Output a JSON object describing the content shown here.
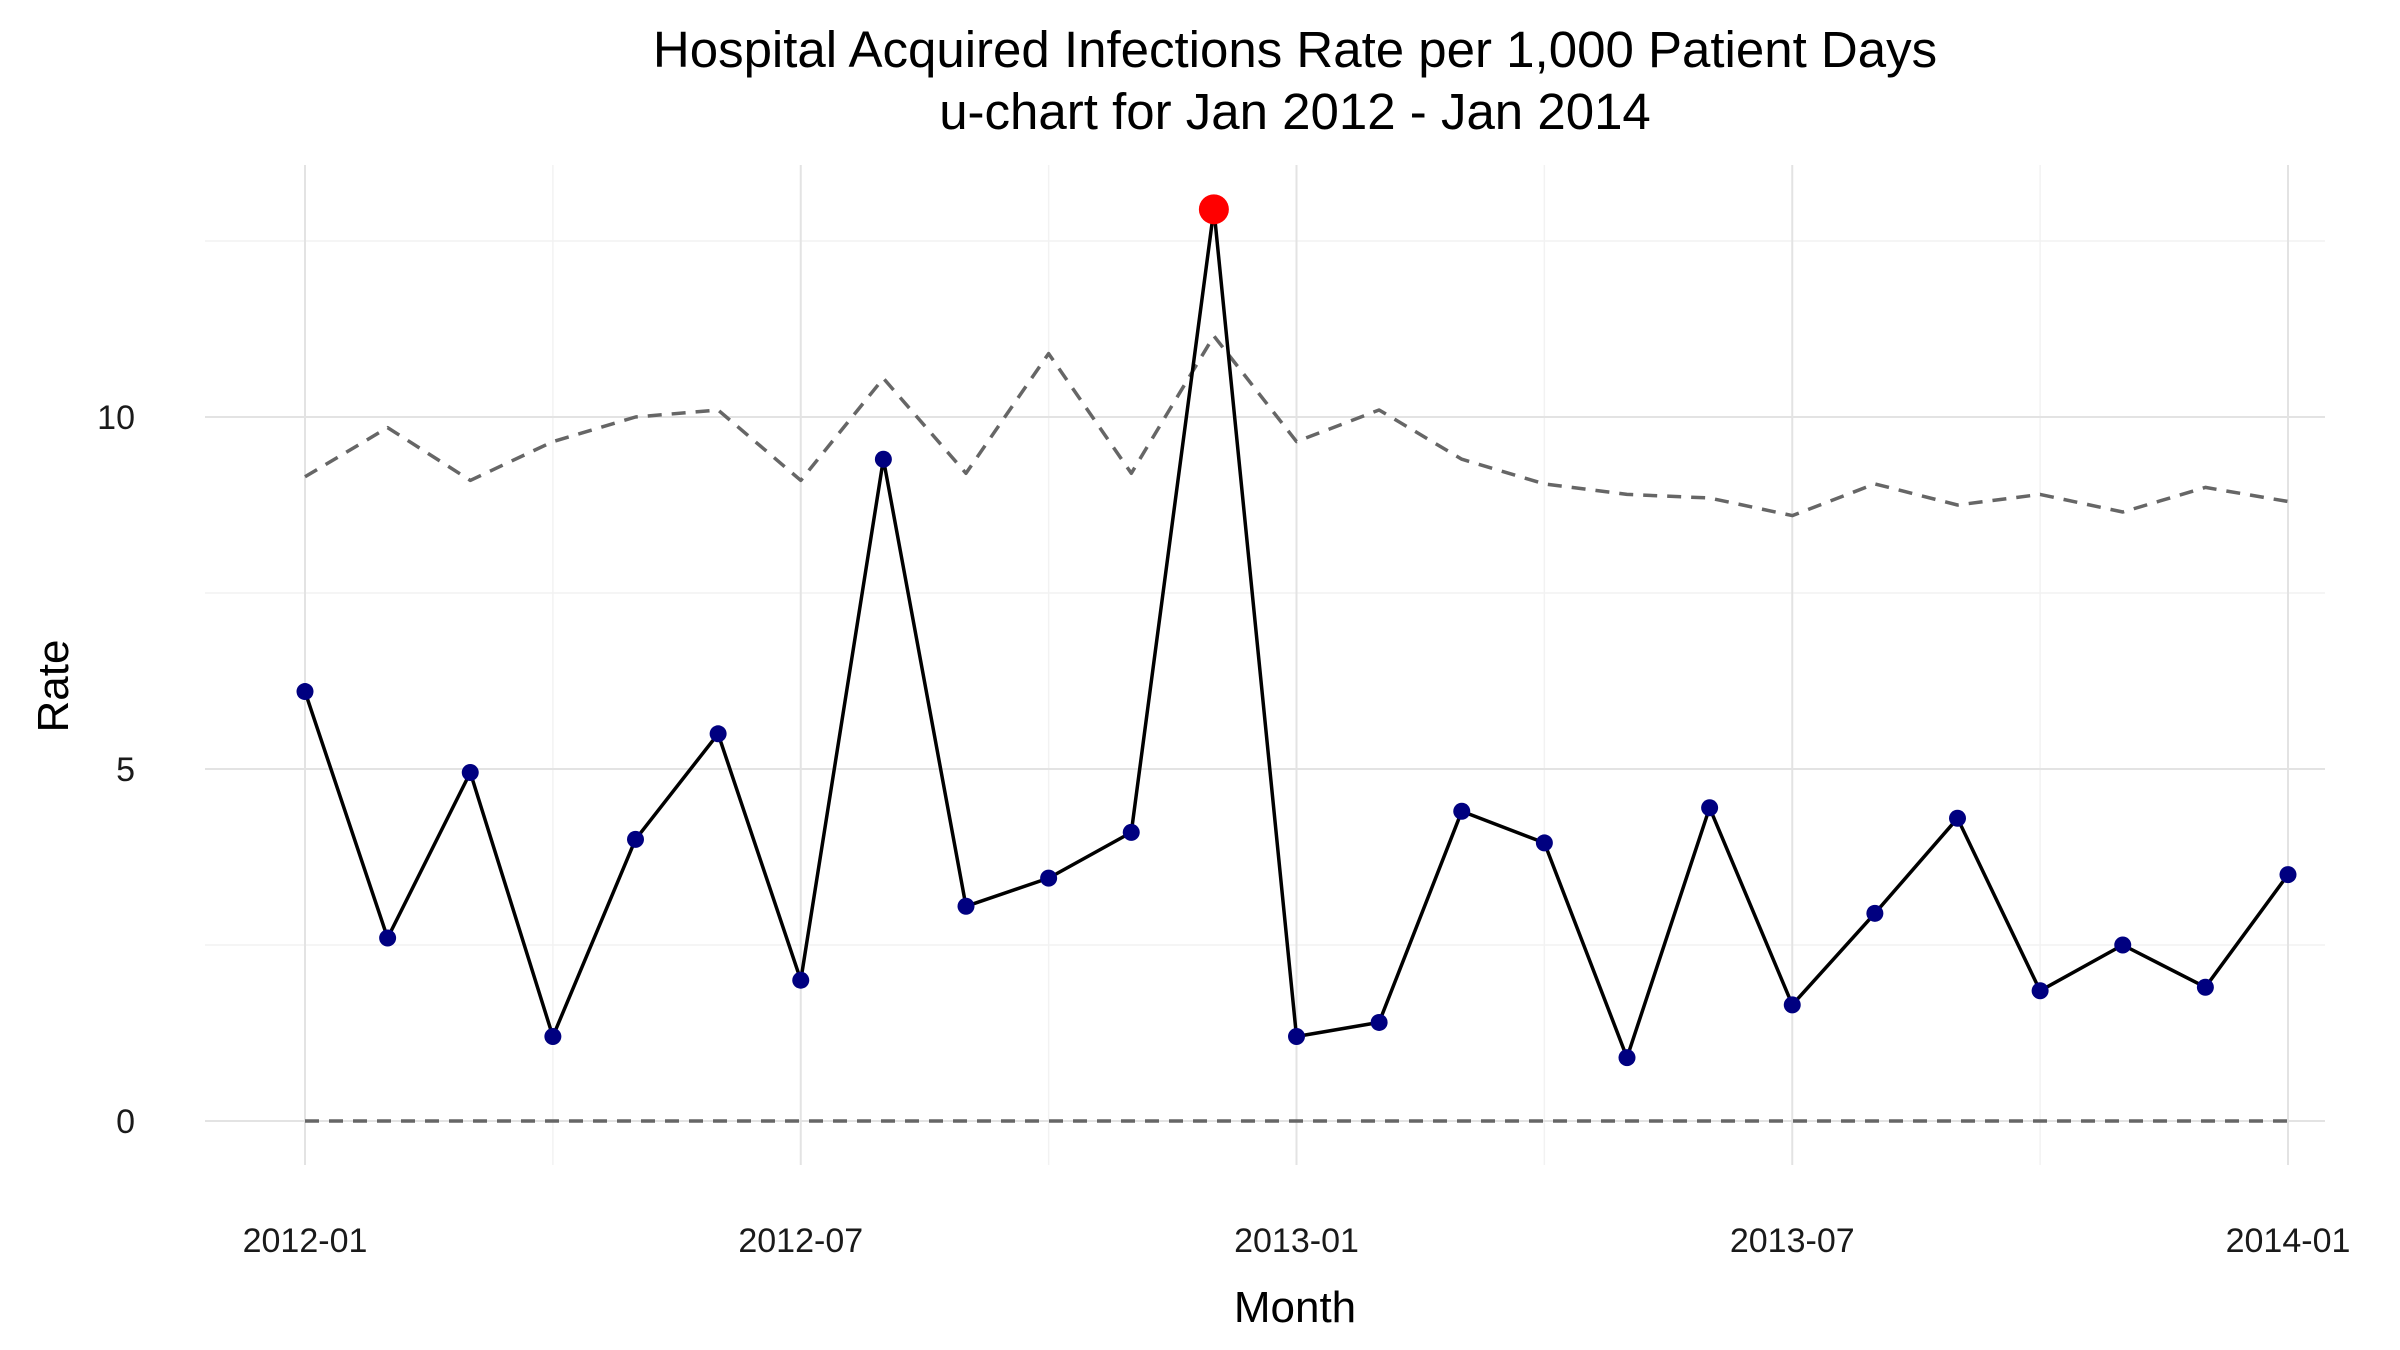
{
  "chart_data": {
    "type": "line",
    "title": "Hospital Acquired Infections Rate per 1,000 Patient Days",
    "subtitle": "u-chart for Jan 2012 - Jan 2014",
    "xlabel": "Month",
    "ylabel": "Rate",
    "x_ticks": [
      "2012-01",
      "2012-07",
      "2013-01",
      "2013-07",
      "2014-01"
    ],
    "y_ticks": [
      "0",
      "5",
      "10"
    ],
    "ylim": [
      -0.7,
      13.6
    ],
    "grid": true,
    "x": [
      "2012-01",
      "2012-02",
      "2012-03",
      "2012-04",
      "2012-05",
      "2012-06",
      "2012-07",
      "2012-08",
      "2012-09",
      "2012-10",
      "2012-11",
      "2012-12",
      "2013-01",
      "2013-02",
      "2013-03",
      "2013-04",
      "2013-05",
      "2013-06",
      "2013-07",
      "2013-08",
      "2013-09",
      "2013-10",
      "2013-11",
      "2013-12",
      "2014-01"
    ],
    "series": [
      {
        "role": "rate",
        "color": "#000000",
        "point_color": "#000080",
        "values": [
          6.1,
          2.6,
          4.95,
          1.2,
          4.0,
          5.5,
          2.0,
          9.4,
          3.05,
          3.45,
          4.1,
          12.95,
          1.2,
          1.4,
          4.4,
          3.95,
          0.9,
          4.45,
          1.65,
          2.95,
          4.3,
          1.85,
          2.5,
          1.9,
          3.5
        ]
      },
      {
        "role": "upper-control-limit",
        "color": "#666666",
        "dashed": true,
        "values": [
          9.15,
          9.85,
          9.1,
          9.65,
          10.0,
          10.1,
          9.1,
          10.55,
          9.2,
          10.9,
          9.2,
          11.15,
          9.65,
          10.1,
          9.4,
          9.05,
          8.9,
          8.85,
          8.6,
          9.05,
          8.75,
          8.9,
          8.65,
          9.0,
          8.8
        ]
      },
      {
        "role": "lower-control-limit",
        "color": "#666666",
        "dashed": true,
        "values": [
          0,
          0,
          0,
          0,
          0,
          0,
          0,
          0,
          0,
          0,
          0,
          0,
          0,
          0,
          0,
          0,
          0,
          0,
          0,
          0,
          0,
          0,
          0,
          0,
          0
        ]
      }
    ],
    "highlight": {
      "x": "2012-12",
      "value": 12.95,
      "color": "#ff0000"
    }
  }
}
